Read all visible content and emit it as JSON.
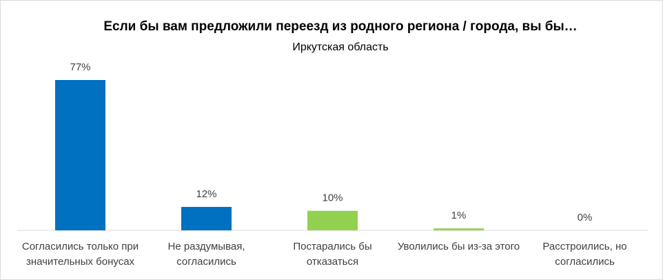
{
  "chart_data": {
    "type": "bar",
    "title": "Если бы вам предложили переезд из родного региона / города, вы бы…",
    "subtitle": "Иркутская область",
    "categories": [
      "Согласились только при значительных бонусах",
      "Не раздумывая, согласились",
      "Постарались бы отказаться",
      "Уволились бы из-за этого",
      "Расстроились, но согласились"
    ],
    "values": [
      77,
      12,
      10,
      1,
      0
    ],
    "value_labels": [
      "77%",
      "12%",
      "10%",
      "1%",
      "0%"
    ],
    "colors": [
      "#0070c0",
      "#0070c0",
      "#92d050",
      "#92d050",
      "#92d050"
    ]
  }
}
